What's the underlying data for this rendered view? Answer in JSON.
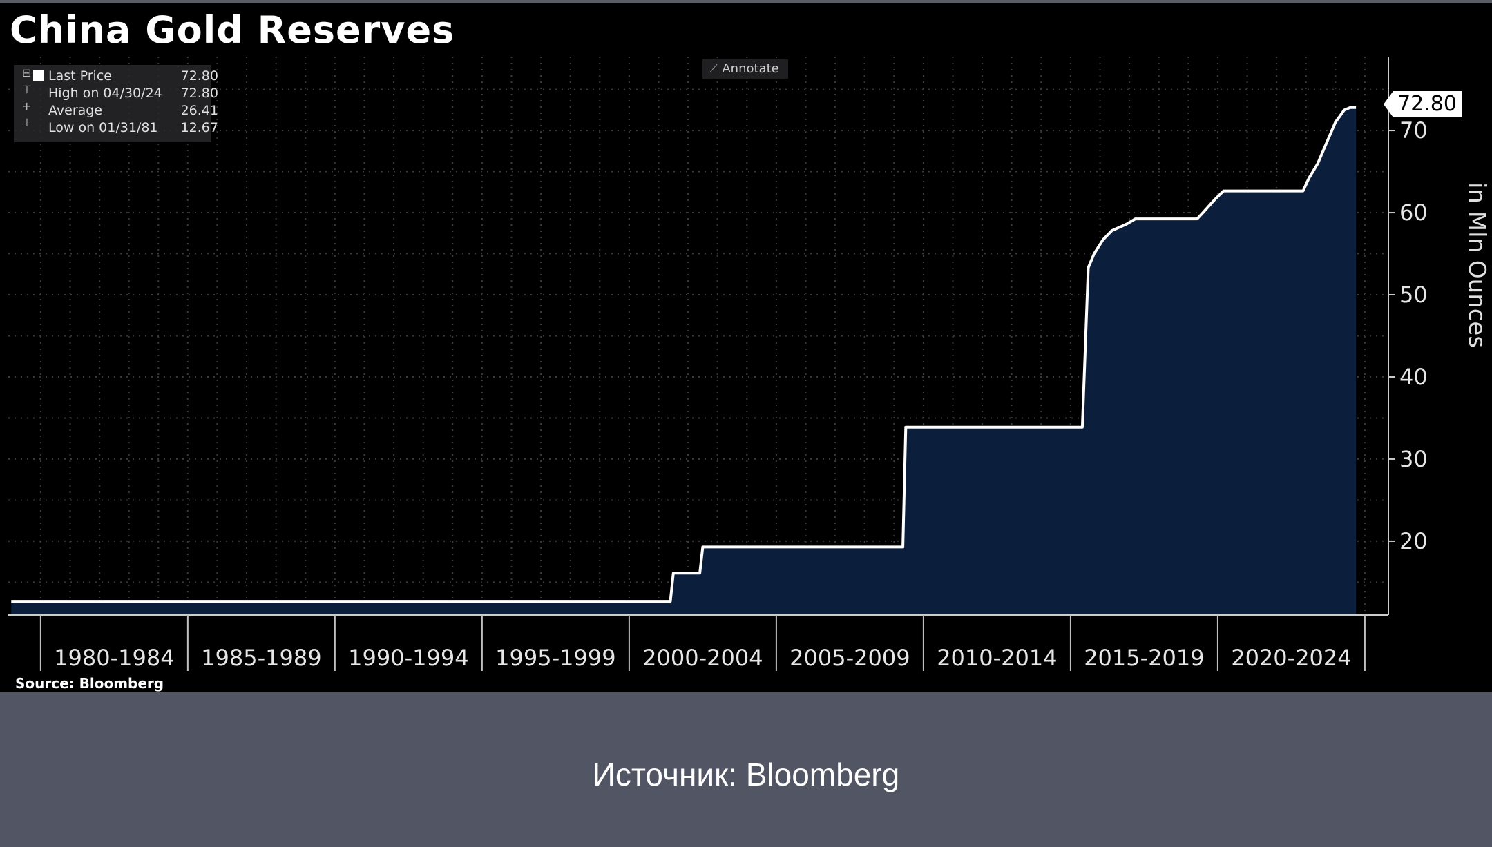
{
  "title": "China Gold Reserves",
  "legend": {
    "items": [
      {
        "label": "Last Price",
        "value": "72.80"
      },
      {
        "label": "High on 04/30/24",
        "value": "72.80"
      },
      {
        "label": "Average",
        "value": "26.41"
      },
      {
        "label": "Low on 01/31/81",
        "value": "12.67"
      }
    ]
  },
  "annotate_label": "Annotate",
  "last_value_tag": "72.80",
  "source": "Source: Bloomberg",
  "caption": "Источник: Bloomberg",
  "colors": {
    "background": "#000000",
    "area_fill": "#0b1f3c",
    "line": "#ffffff",
    "grid": "#3a3a3a",
    "page_bg": "#525563"
  },
  "chart_data": {
    "type": "area",
    "title": "China Gold Reserves",
    "ylabel": "in Mln Ounces",
    "xlabel": "",
    "x_tick_labels": [
      "1980-1984",
      "1985-1989",
      "1990-1994",
      "1995-1999",
      "2000-2004",
      "2005-2009",
      "2010-2014",
      "2015-2019",
      "2020-2024"
    ],
    "y_tick_labels": [
      "20",
      "30",
      "40",
      "50",
      "60",
      "70"
    ],
    "ylim": [
      11,
      79
    ],
    "xlim": [
      1978.9,
      2025.8
    ],
    "grid": true,
    "legend_position": "top-left",
    "series": [
      {
        "name": "Last Price",
        "points": [
          [
            1979.0,
            12.67
          ],
          [
            1980.9,
            12.67
          ],
          [
            1981.0,
            12.67
          ],
          [
            2001.4,
            12.67
          ],
          [
            2001.5,
            16.1
          ],
          [
            2002.4,
            16.1
          ],
          [
            2002.5,
            19.29
          ],
          [
            2009.3,
            19.29
          ],
          [
            2009.4,
            33.89
          ],
          [
            2015.4,
            33.89
          ],
          [
            2015.6,
            53.3
          ],
          [
            2015.8,
            55.0
          ],
          [
            2016.1,
            56.7
          ],
          [
            2016.4,
            57.8
          ],
          [
            2016.9,
            58.6
          ],
          [
            2017.2,
            59.24
          ],
          [
            2019.3,
            59.24
          ],
          [
            2019.5,
            60.0
          ],
          [
            2019.9,
            61.6
          ],
          [
            2020.2,
            62.64
          ],
          [
            2022.9,
            62.64
          ],
          [
            2023.1,
            64.2
          ],
          [
            2023.4,
            66.0
          ],
          [
            2023.7,
            68.5
          ],
          [
            2024.0,
            71.0
          ],
          [
            2024.3,
            72.5
          ],
          [
            2024.5,
            72.8
          ],
          [
            2024.7,
            72.8
          ]
        ]
      }
    ]
  }
}
